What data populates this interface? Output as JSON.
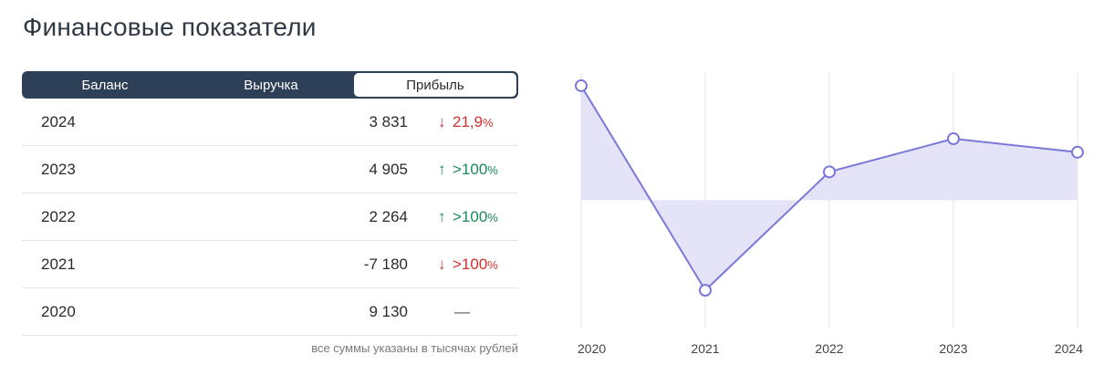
{
  "title": "Финансовые показатели",
  "tabs": [
    {
      "label": "Баланс",
      "active": false
    },
    {
      "label": "Выручка",
      "active": false
    },
    {
      "label": "Прибыль",
      "active": true
    }
  ],
  "rows": [
    {
      "year": "2024",
      "value": "3 831",
      "direction": "down",
      "change": "21,9",
      "unit": "%"
    },
    {
      "year": "2023",
      "value": "4 905",
      "direction": "up",
      "change": ">100",
      "unit": "%"
    },
    {
      "year": "2022",
      "value": "2 264",
      "direction": "up",
      "change": ">100",
      "unit": "%"
    },
    {
      "year": "2021",
      "value": "-7 180",
      "direction": "down",
      "change": ">100",
      "unit": "%"
    },
    {
      "year": "2020",
      "value": "9 130",
      "direction": "none",
      "change": "—",
      "unit": ""
    }
  ],
  "icons": {
    "down": "arrow-down-icon",
    "up": "arrow-up-icon"
  },
  "note": "все суммы указаны в тысячах рублей",
  "colors": {
    "tab_bg": "#2e4057",
    "down": "#d0312d",
    "up": "#1a8a5a",
    "line": "#7b78d8",
    "fill": "#e4e3f7"
  },
  "chart_data": {
    "type": "area",
    "categories": [
      "2020",
      "2021",
      "2022",
      "2023",
      "2024"
    ],
    "values": [
      9130,
      -7180,
      2264,
      4905,
      3831
    ],
    "baseline": 0,
    "ylim": [
      -9500,
      10000
    ],
    "grid": "vertical"
  }
}
